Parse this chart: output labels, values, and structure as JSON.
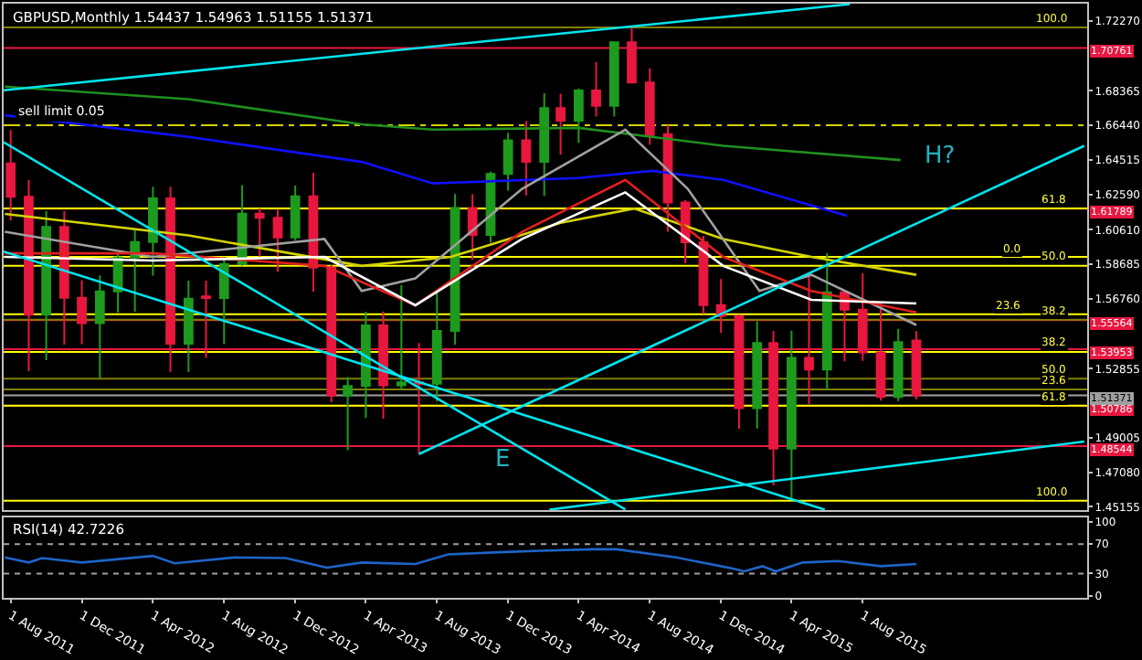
{
  "chart_data": [
    {
      "type": "candlestick",
      "title": "GBPUSD,Monthly 1.54437 1.54963 1.51155 1.51371",
      "x": [
        "2011-08",
        "2011-09",
        "2011-10",
        "2011-11",
        "2011-12",
        "2012-01",
        "2012-02",
        "2012-03",
        "2012-04",
        "2012-05",
        "2012-06",
        "2012-07",
        "2012-08",
        "2012-09",
        "2012-10",
        "2012-11",
        "2012-12",
        "2013-01",
        "2013-02",
        "2013-03",
        "2013-04",
        "2013-05",
        "2013-06",
        "2013-07",
        "2013-08",
        "2013-09",
        "2013-10",
        "2013-11",
        "2013-12",
        "2014-01",
        "2014-02",
        "2014-03",
        "2014-04",
        "2014-05",
        "2014-06",
        "2014-07",
        "2014-08",
        "2014-09",
        "2014-10",
        "2014-11",
        "2014-12",
        "2015-01",
        "2015-02",
        "2015-03",
        "2015-04",
        "2015-05",
        "2015-06",
        "2015-07",
        "2015-08",
        "2015-09",
        "2015-10",
        "2015-11"
      ],
      "ohlc": [
        [
          1.6432,
          1.6618,
          1.6113,
          1.6245
        ],
        [
          1.6245,
          1.634,
          1.5272,
          1.5588
        ],
        [
          1.5588,
          1.6166,
          1.5334,
          1.6077
        ],
        [
          1.6077,
          1.6165,
          1.542,
          1.5682
        ],
        [
          1.5682,
          1.578,
          1.5423,
          1.5541
        ],
        [
          1.5541,
          1.5807,
          1.5234,
          1.5718
        ],
        [
          1.5718,
          1.5934,
          1.56,
          1.5906
        ],
        [
          1.5906,
          1.606,
          1.5604,
          1.5993
        ],
        [
          1.5993,
          1.6302,
          1.5805,
          1.6236
        ],
        [
          1.6236,
          1.6302,
          1.5269,
          1.5425
        ],
        [
          1.5425,
          1.5778,
          1.5268,
          1.5677
        ],
        [
          1.569,
          1.5777,
          1.5347,
          1.568
        ],
        [
          1.568,
          1.591,
          1.5423,
          1.587
        ],
        [
          1.587,
          1.631,
          1.586,
          1.6151
        ],
        [
          1.6151,
          1.618,
          1.5911,
          1.6128
        ],
        [
          1.6128,
          1.6173,
          1.5827,
          1.6018
        ],
        [
          1.6018,
          1.6308,
          1.6003,
          1.6248
        ],
        [
          1.6248,
          1.638,
          1.5716,
          1.585
        ],
        [
          1.585,
          1.5866,
          1.5099,
          1.5136
        ],
        [
          1.5136,
          1.524,
          1.4832,
          1.519
        ],
        [
          1.519,
          1.5604,
          1.5011,
          1.5528
        ],
        [
          1.5528,
          1.5605,
          1.5008,
          1.5193
        ],
        [
          1.5193,
          1.5752,
          1.517,
          1.521
        ],
        [
          1.521,
          1.543,
          1.4812,
          1.5203
        ],
        [
          1.5203,
          1.5717,
          1.5103,
          1.5497
        ],
        [
          1.5497,
          1.6261,
          1.542,
          1.6183
        ],
        [
          1.6183,
          1.6259,
          1.5894,
          1.6033
        ],
        [
          1.6033,
          1.6386,
          1.5989,
          1.6373
        ],
        [
          1.6373,
          1.6603,
          1.628,
          1.656
        ],
        [
          1.656,
          1.6668,
          1.6253,
          1.644
        ],
        [
          1.644,
          1.6823,
          1.625,
          1.674
        ],
        [
          1.674,
          1.6821,
          1.648,
          1.667
        ],
        [
          1.667,
          1.685,
          1.6547,
          1.6838
        ],
        [
          1.6838,
          1.6998,
          1.6693,
          1.6753
        ],
        [
          1.6753,
          1.711,
          1.6693,
          1.7107
        ],
        [
          1.7107,
          1.7191,
          1.688,
          1.6883
        ],
        [
          1.6883,
          1.6962,
          1.6535,
          1.659
        ],
        [
          1.6595,
          1.6644,
          1.6051,
          1.6213
        ],
        [
          1.6213,
          1.6226,
          1.5874,
          1.5992
        ],
        [
          1.5992,
          1.6027,
          1.5591,
          1.5641
        ],
        [
          1.5641,
          1.5786,
          1.5486,
          1.558
        ],
        [
          1.558,
          1.5588,
          1.4951,
          1.5066
        ],
        [
          1.5066,
          1.555,
          1.4952,
          1.543
        ],
        [
          1.543,
          1.5497,
          1.4635,
          1.484
        ],
        [
          1.484,
          1.5498,
          1.4565,
          1.5347
        ],
        [
          1.5347,
          1.5815,
          1.5089,
          1.5282
        ],
        [
          1.5282,
          1.593,
          1.517,
          1.5712
        ],
        [
          1.5712,
          1.5715,
          1.5328,
          1.5615
        ],
        [
          1.5615,
          1.582,
          1.533,
          1.5377
        ],
        [
          1.5377,
          1.566,
          1.5108,
          1.5129
        ],
        [
          1.5129,
          1.5508,
          1.5106,
          1.5434
        ],
        [
          1.54437,
          1.54963,
          1.51155,
          1.51371
        ]
      ],
      "colors": [
        "#e8173f",
        "#e8173f",
        "#1e9b1e",
        "#e8173f",
        "#e8173f",
        "#1e9b1e",
        "#1e9b1e",
        "#1e9b1e",
        "#1e9b1e",
        "#e8173f",
        "#1e9b1e",
        "#e8173f",
        "#1e9b1e",
        "#1e9b1e",
        "#e8173f",
        "#e8173f",
        "#1e9b1e",
        "#e8173f",
        "#e8173f",
        "#1e9b1e",
        "#1e9b1e",
        "#e8173f",
        "#1e9b1e",
        "#e8173f",
        "#1e9b1e",
        "#1e9b1e",
        "#e8173f",
        "#1e9b1e",
        "#1e9b1e",
        "#e8173f",
        "#1e9b1e",
        "#e8173f",
        "#1e9b1e",
        "#e8173f",
        "#1e9b1e",
        "#e8173f",
        "#e8173f",
        "#e8173f",
        "#e8173f",
        "#e8173f",
        "#e8173f",
        "#e8173f",
        "#1e9b1e",
        "#e8173f",
        "#1e9b1e",
        "#e8173f",
        "#1e9b1e",
        "#e8173f",
        "#e8173f",
        "#e8173f",
        "#1e9b1e",
        "#e8173f"
      ],
      "series": [
        {
          "type": "line",
          "color": "#1f8f1f",
          "x": [
            "2011-07-22",
            "2012-06-01",
            "2013-03-25",
            "2013-07-25",
            "2014-04-01",
            "2014-12-05",
            "2015-10-05"
          ],
          "values": [
            1.686,
            1.679,
            1.665,
            1.662,
            1.663,
            1.653,
            1.645
          ]
        },
        {
          "type": "line",
          "color": "#1010ff",
          "x": [
            "2011-07-22",
            "2012-06-01",
            "2013-03-25",
            "2013-07-25",
            "2014-04-01",
            "2014-08-05",
            "2014-12-05",
            "2015-07-05"
          ],
          "values": [
            1.67,
            1.658,
            1.644,
            1.632,
            1.635,
            1.639,
            1.634,
            1.614
          ]
        },
        {
          "type": "line",
          "color": "#d4d400",
          "x": [
            "2011-07-22",
            "2012-06-01",
            "2013-03-25",
            "2013-08-25",
            "2014-03-01",
            "2014-07-05",
            "2014-12-05",
            "2015-05-05",
            "2015-11-01"
          ],
          "values": [
            1.615,
            1.603,
            1.586,
            1.591,
            1.61,
            1.618,
            1.601,
            1.591,
            1.581
          ]
        },
        {
          "type": "line",
          "color": "#a0a0a0",
          "x": [
            "2011-07-22",
            "2012-04-01",
            "2013-01-20",
            "2013-03-25",
            "2013-06-25",
            "2013-12-25",
            "2014-06-20",
            "2014-10-05",
            "2015-02-05",
            "2015-05-05",
            "2015-11-01"
          ],
          "values": [
            1.605,
            1.591,
            1.601,
            1.572,
            1.579,
            1.629,
            1.662,
            1.629,
            1.572,
            1.581,
            1.553
          ]
        },
        {
          "type": "line",
          "color": "#e0201e",
          "x": [
            "2011-07-22",
            "2012-04-01",
            "2013-01-20",
            "2013-06-25",
            "2013-12-25",
            "2014-06-20",
            "2014-12-05",
            "2015-05-05",
            "2015-11-01"
          ],
          "values": [
            1.593,
            1.593,
            1.586,
            1.564,
            1.605,
            1.634,
            1.591,
            1.572,
            1.56
          ]
        },
        {
          "type": "line",
          "color": "#ffffff",
          "x": [
            "2011-07-22",
            "2012-04-01",
            "2013-01-20",
            "2013-06-25",
            "2013-12-25",
            "2014-06-20",
            "2014-12-05",
            "2015-05-05",
            "2015-11-01"
          ],
          "values": [
            1.591,
            1.589,
            1.591,
            1.564,
            1.601,
            1.627,
            1.586,
            1.567,
            1.565
          ]
        },
        {
          "type": "line",
          "color": "#00e5ee",
          "x": [
            "2011-07-20",
            "2015-07-10"
          ],
          "values": [
            1.684,
            1.732
          ]
        },
        {
          "type": "line",
          "color": "#00e5ee",
          "x": [
            "2011-07-20",
            "2014-06-20"
          ],
          "values": [
            1.655,
            1.45
          ]
        },
        {
          "type": "line",
          "color": "#00e5ee",
          "x": [
            "2011-07-20",
            "2015-05-28"
          ],
          "values": [
            1.594,
            1.45
          ]
        },
        {
          "type": "line",
          "color": "#00e5ee",
          "x": [
            "2013-07-01",
            "2016-08-15"
          ],
          "values": [
            1.481,
            1.653
          ]
        },
        {
          "type": "line",
          "color": "#00e5ee",
          "x": [
            "2014-02-10",
            "2016-08-15"
          ],
          "values": [
            1.45,
            1.488
          ]
        }
      ],
      "ref_lines": [
        {
          "axis": "y",
          "value": 1.70761,
          "label": "1.70761",
          "color": "#e8173f"
        },
        {
          "axis": "y",
          "value": 1.61789,
          "label": "1.61789",
          "color": "#e8173f"
        },
        {
          "axis": "y",
          "value": 1.55564,
          "label": "1.55564",
          "color": "#e8173f"
        },
        {
          "axis": "y",
          "value": 1.53953,
          "label": "1.53953",
          "color": "#e8173f"
        },
        {
          "axis": "y",
          "value": 1.50786,
          "label": "1.50786",
          "color": "#e8173f"
        },
        {
          "axis": "y",
          "value": 1.48544,
          "label": "1.48544",
          "color": "#e8173f"
        },
        {
          "axis": "y",
          "value": 1.51371,
          "label": "1.51371",
          "color": "#a0a0a0"
        },
        {
          "axis": "y",
          "value": 1.6644,
          "label": "sell limit 0.05",
          "color": "#d4d400",
          "line_style": "dashdot"
        },
        {
          "axis": "y",
          "value": 1.719,
          "color": "#808000"
        },
        {
          "axis": "y",
          "value": 1.618,
          "color": "#ffff00"
        },
        {
          "axis": "y",
          "value": 1.591,
          "color": "#ffff00"
        },
        {
          "axis": "y",
          "value": 1.586,
          "color": "#ffff00"
        },
        {
          "axis": "y",
          "value": 1.559,
          "color": "#ffff00"
        },
        {
          "axis": "y",
          "value": 1.556,
          "color": "#808000"
        },
        {
          "axis": "y",
          "value": 1.538,
          "color": "#ffff00"
        },
        {
          "axis": "y",
          "value": 1.523,
          "color": "#808000"
        },
        {
          "axis": "y",
          "value": 1.517,
          "color": "#808000"
        },
        {
          "axis": "y",
          "value": 1.508,
          "color": "#ffff00"
        },
        {
          "axis": "y",
          "value": 1.455,
          "color": "#ffff00"
        }
      ],
      "annotations": [
        "E",
        "H?",
        {
          "text": "100.0",
          "x": "2016-07-20",
          "y": 1.719
        },
        {
          "text": "61.8",
          "x": "2016-07-20",
          "y": 1.618
        },
        {
          "text": "0.0",
          "x": "2016-05-01",
          "y": 1.591
        },
        {
          "text": "50.0",
          "x": "2016-07-20",
          "y": 1.586
        },
        {
          "text": "23.6",
          "x": "2016-05-01",
          "y": 1.559
        },
        {
          "text": "38.2",
          "x": "2016-07-20",
          "y": 1.556
        },
        {
          "text": "38.2",
          "x": "2016-07-20",
          "y": 1.538
        },
        {
          "text": "50.0",
          "x": "2016-07-20",
          "y": 1.523
        },
        {
          "text": "23.6",
          "x": "2016-07-20",
          "y": 1.517
        },
        {
          "text": "61.8",
          "x": "2016-07-20",
          "y": 1.508
        },
        {
          "text": "100.0",
          "x": "2016-07-20",
          "y": 1.455
        }
      ],
      "xlim": [
        "2011-07-20",
        "2016-08-20"
      ],
      "ylim": [
        1.4495,
        1.7323
      ],
      "yticks": [
        {
          "value": 1.7227,
          "label": "1.72270"
        },
        {
          "value": 1.68365,
          "label": "1.68365"
        },
        {
          "value": 1.6644,
          "label": "1.66440"
        },
        {
          "value": 1.64515,
          "label": "1.64515"
        },
        {
          "value": 1.6259,
          "label": "1.62590"
        },
        {
          "value": 1.6061,
          "label": "1.60610"
        },
        {
          "value": 1.58685,
          "label": "1.58685"
        },
        {
          "value": 1.5676,
          "label": "1.56760"
        },
        {
          "value": 1.52855,
          "label": "1.52855"
        },
        {
          "value": 1.49005,
          "label": "1.49005"
        },
        {
          "value": 1.4708,
          "label": "1.47080"
        },
        {
          "value": 1.45155,
          "label": "1.45155"
        }
      ],
      "tick_labels": "y",
      "grid": false
    },
    {
      "type": "line",
      "title": "RSI(14) 42.7226",
      "series": [
        {
          "color": "#1e64c8",
          "x": [
            "2011-07-22",
            "2011-09-01",
            "2011-09-24",
            "2011-12-01",
            "2012-04-01",
            "2012-05-08",
            "2012-08-20",
            "2012-11-15",
            "2013-01-24",
            "2013-03-25",
            "2013-06-25",
            "2013-08-20",
            "2013-11-15",
            "2014-01-25",
            "2014-04-25",
            "2014-06-05",
            "2014-09-15",
            "2014-12-20",
            "2015-01-10",
            "2015-02-10",
            "2015-03-05",
            "2015-04-20",
            "2015-06-20",
            "2015-09-01",
            "2015-11-01"
          ],
          "values": [
            52,
            45,
            51,
            45,
            54,
            44,
            52,
            51,
            38,
            45,
            43,
            56,
            59,
            61,
            63,
            63,
            52,
            37,
            33,
            40,
            33,
            45,
            47,
            40,
            43
          ]
        }
      ],
      "ref_lines": [
        {
          "axis": "y",
          "value": 70,
          "color": "#a0a0a0",
          "line_style": "dotted"
        },
        {
          "axis": "y",
          "value": 30,
          "color": "#a0a0a0",
          "line_style": "dotted"
        }
      ],
      "xlim": [
        "2011-07-20",
        "2016-08-20"
      ],
      "xticks": [
        {
          "value": "2011-08-01",
          "label": "1 Aug 2011"
        },
        {
          "value": "2011-12-01",
          "label": "1 Dec 2011"
        },
        {
          "value": "2012-04-01",
          "label": "1 Apr 2012"
        },
        {
          "value": "2012-08-01",
          "label": "1 Aug 2012"
        },
        {
          "value": "2012-12-01",
          "label": "1 Dec 2012"
        },
        {
          "value": "2013-04-01",
          "label": "1 Apr 2013"
        },
        {
          "value": "2013-08-01",
          "label": "1 Aug 2013"
        },
        {
          "value": "2013-12-01",
          "label": "1 Dec 2013"
        },
        {
          "value": "2014-04-01",
          "label": "1 Apr 2014"
        },
        {
          "value": "2014-08-01",
          "label": "1 Aug 2014"
        },
        {
          "value": "2014-12-01",
          "label": "1 Dec 2014"
        },
        {
          "value": "2015-04-01",
          "label": "1 Apr 2015"
        },
        {
          "value": "2015-08-01",
          "label": "1 Aug 2015"
        }
      ],
      "ylim": [
        -3,
        106
      ],
      "yticks": [
        0,
        30,
        70,
        100
      ],
      "grid": false,
      "marker": "none"
    }
  ]
}
